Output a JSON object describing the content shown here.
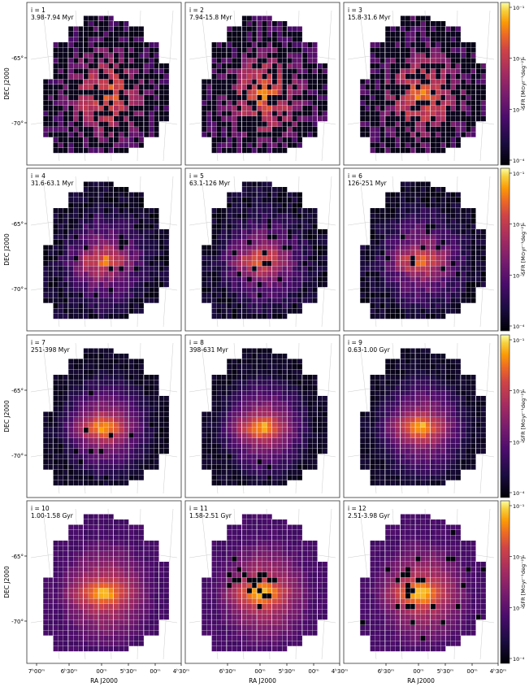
{
  "figure": {
    "xlabel": "RA J2000",
    "ylabel": "DEC J2000",
    "colorbar_label": "SFR [M⊙yr⁻¹deg⁻²]",
    "colorbar_ticks": [
      "10⁻¹",
      "10⁻²",
      "10⁻³",
      "10⁻⁴"
    ],
    "x_ticks": [
      "7ʰ00ᵐ",
      "6ʰ30ᵐ",
      "00ᵐ",
      "5ʰ30ᵐ",
      "00ᵐ",
      "4ʰ30ᵐ"
    ],
    "y_ticks": [
      "-65°",
      "-70°"
    ]
  },
  "chart_data": {
    "type": "heatmap",
    "xlabel": "RA J2000",
    "ylabel": "DEC J2000",
    "colorbar": {
      "label": "SFR [M⊙yr⁻¹deg⁻²]",
      "scale": "log",
      "range": [
        0.0001,
        0.1
      ],
      "colormap": "inferno"
    },
    "x_ticks": [
      "7h00m",
      "6h30m",
      "00m",
      "5h30m",
      "00m",
      "4h30m"
    ],
    "y_ticks": [
      "-65°",
      "-70°"
    ],
    "panels": [
      {
        "index": "i = 1",
        "age": "3.98-7.94 Myr"
      },
      {
        "index": "i = 2",
        "age": "7.94-15.8 Myr"
      },
      {
        "index": "i = 3",
        "age": "15.8-31.6 Myr"
      },
      {
        "index": "i = 4",
        "age": "31.6-63.1 Myr"
      },
      {
        "index": "i = 5",
        "age": "63.1-126 Myr"
      },
      {
        "index": "i = 6",
        "age": "126-251 Myr"
      },
      {
        "index": "i = 7",
        "age": "251-398 Myr"
      },
      {
        "index": "i = 8",
        "age": "398-631 Myr"
      },
      {
        "index": "i = 9",
        "age": "0.63-1.00 Gyr"
      },
      {
        "index": "i = 10",
        "age": "1.00-1.58 Gyr"
      },
      {
        "index": "i = 11",
        "age": "1.58-2.51 Gyr"
      },
      {
        "index": "i = 12",
        "age": "2.51-3.98 Gyr"
      }
    ]
  }
}
